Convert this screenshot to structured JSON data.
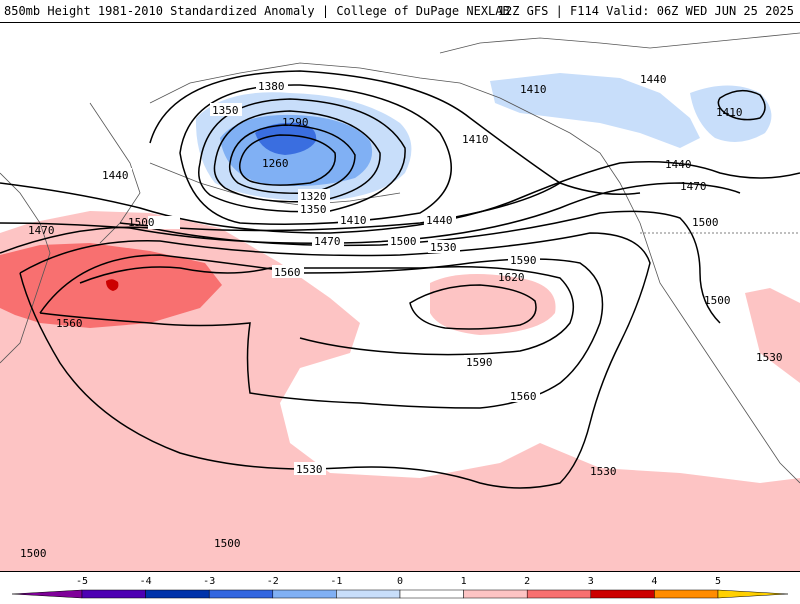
{
  "header": {
    "left_text": "850mb Height 1981-2010 Standardized Anomaly | College of DuPage NEXLAB",
    "right_text": "12Z GFS | F114 Valid: 06Z WED JUN 25 2025"
  },
  "map": {
    "contour_labels": [
      "1380",
      "1350",
      "1290",
      "1260",
      "1320",
      "1350",
      "1410",
      "1440",
      "1470",
      "1500",
      "1530",
      "1560",
      "1590",
      "1620",
      "1590",
      "1560",
      "1530",
      "1500",
      "1470",
      "1440",
      "1410",
      "1440",
      "1470",
      "1440",
      "1410",
      "1500",
      "1500",
      "1530",
      "1560",
      "1500",
      "1530",
      "1500",
      "1410"
    ],
    "shading_colors": {
      "pos1": "#fdc4c4",
      "pos2": "#f87070",
      "pos3": "#cc0000",
      "neg1": "#c8defa",
      "neg2": "#80b0f4",
      "neg3": "#3a6ee0"
    }
  },
  "colorbar": {
    "ticks": [
      "-5",
      "-4",
      "-3",
      "-2",
      "-1",
      "0",
      "1",
      "2",
      "3",
      "4",
      "5"
    ],
    "colors": [
      "#7f0099",
      "#4d00b3",
      "#0033aa",
      "#3366e0",
      "#80b0f4",
      "#c8defa",
      "#ffffff",
      "#fdc4c4",
      "#f87070",
      "#cc0000",
      "#ff8c00",
      "#ffd000"
    ]
  }
}
